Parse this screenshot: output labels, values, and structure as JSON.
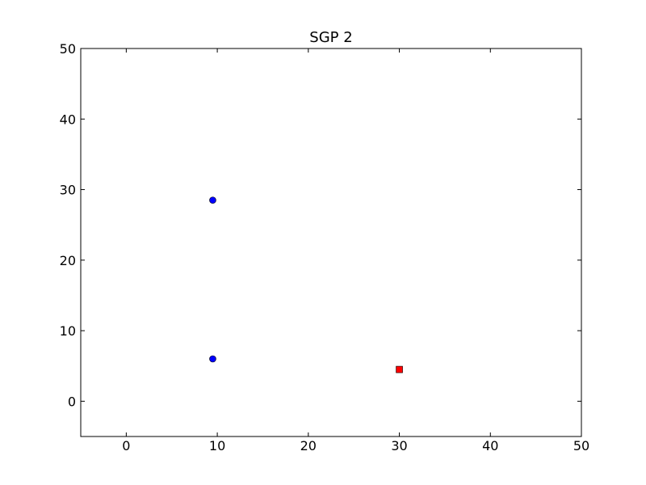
{
  "chart_data": {
    "type": "scatter",
    "title": "SGP 2",
    "xlabel": "",
    "ylabel": "",
    "xlim": [
      -5,
      50
    ],
    "ylim": [
      -5,
      50
    ],
    "xticks": [
      0,
      10,
      20,
      30,
      40,
      50
    ],
    "yticks": [
      0,
      10,
      20,
      30,
      40,
      50
    ],
    "grid": false,
    "series": [
      {
        "marker": "circle",
        "color": "#0000ff",
        "points": [
          {
            "x": 9.5,
            "y": 28.5
          },
          {
            "x": 9.5,
            "y": 6
          }
        ]
      },
      {
        "marker": "square",
        "color": "#ff0000",
        "points": [
          {
            "x": 30,
            "y": 4.5
          }
        ]
      }
    ]
  }
}
